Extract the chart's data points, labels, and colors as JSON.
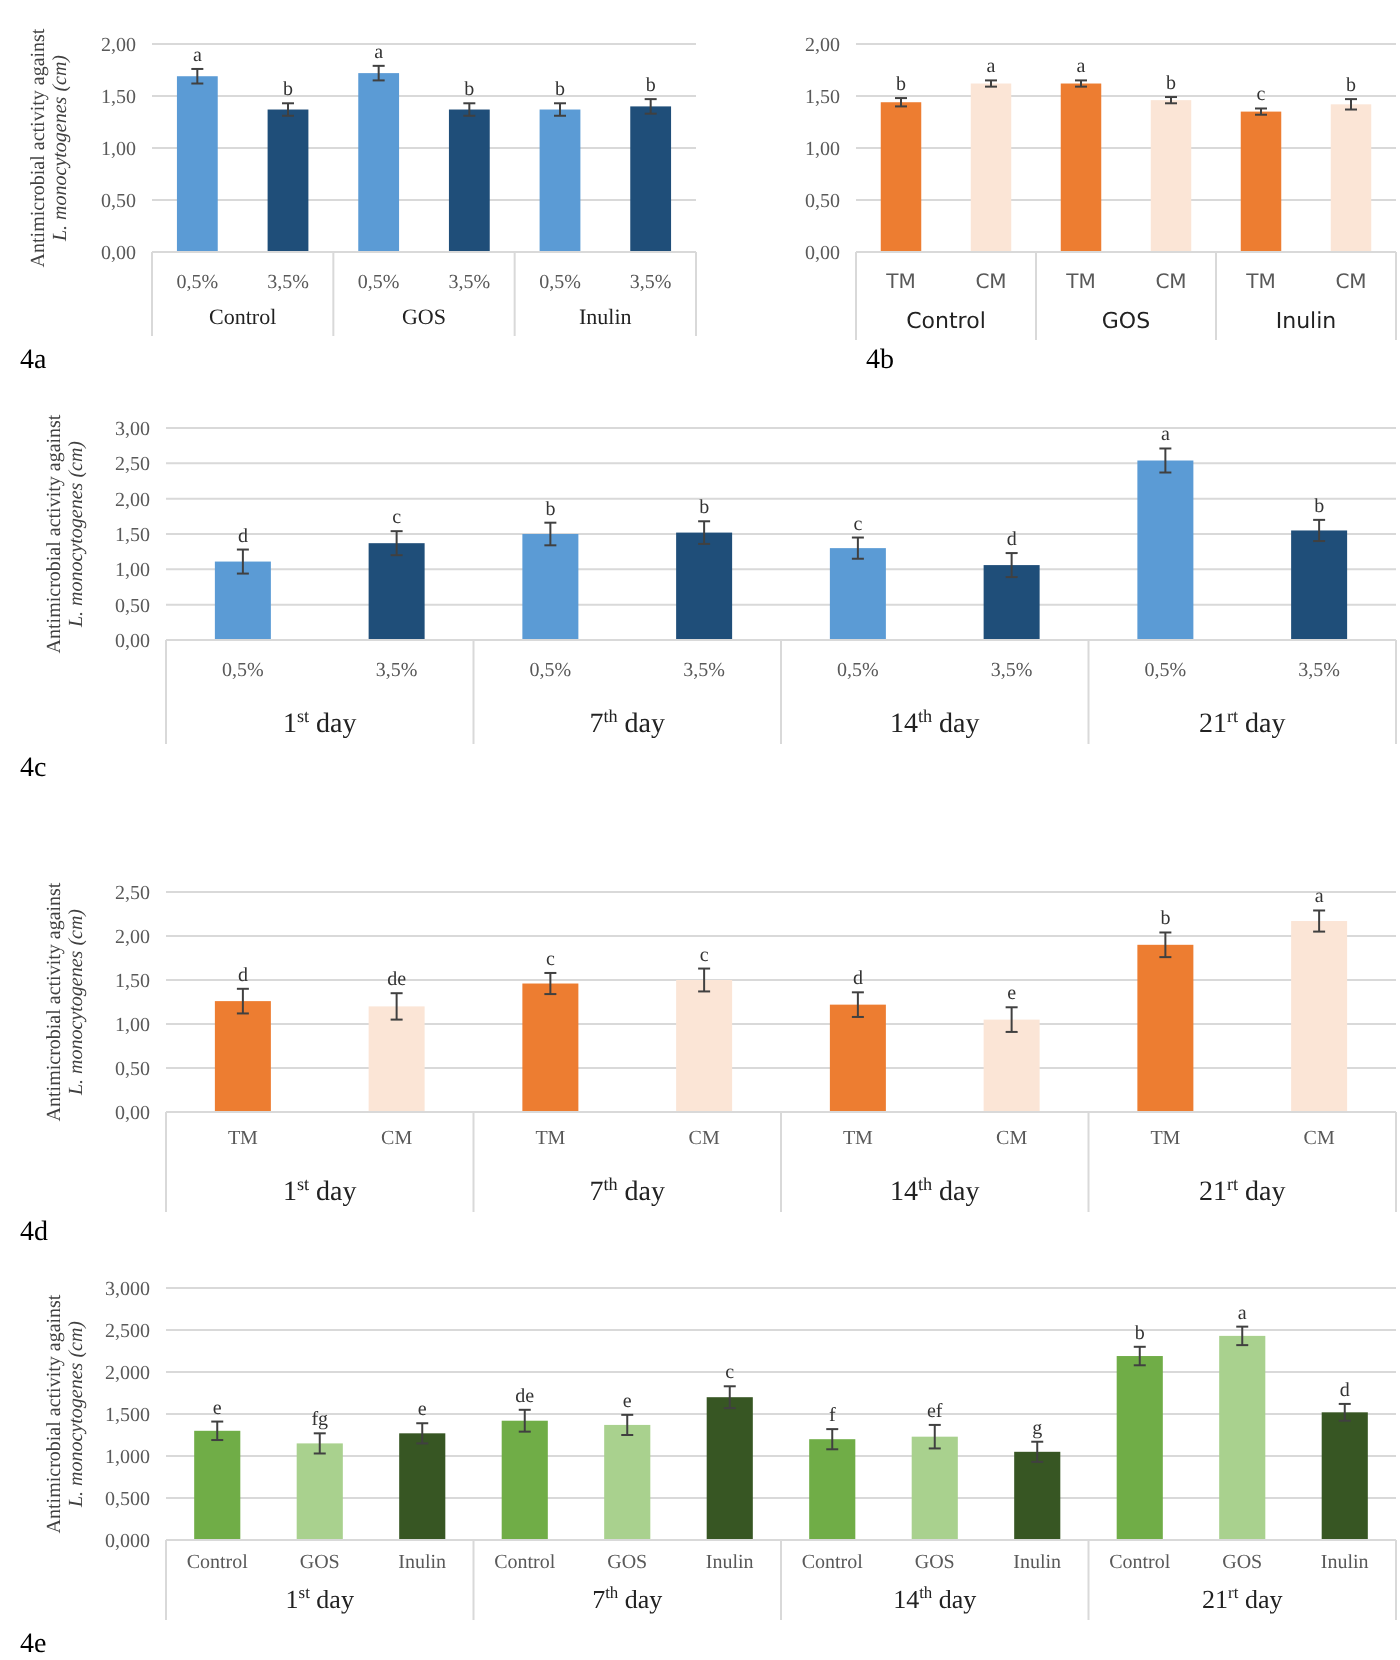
{
  "chart_data": [
    {
      "type": "bar",
      "title": "4a",
      "ylabel": "Antimicrobial activity against\nL. monocytogenes (cm)",
      "categories": [
        "0,5%",
        "3,5%",
        "0,5%",
        "3,5%",
        "0,5%",
        "3,5%"
      ],
      "annotations": [
        "Control",
        "GOS",
        "Inulin"
      ],
      "series": [
        {
          "values": [
            1.69,
            1.37,
            1.72,
            1.37,
            1.37,
            1.4
          ],
          "colors": [
            "#5b9bd5",
            "#1f4e79",
            "#5b9bd5",
            "#1f4e79",
            "#5b9bd5",
            "#1f4e79"
          ],
          "errors": [
            0.07,
            0.06,
            0.07,
            0.06,
            0.06,
            0.07
          ],
          "value_labels": [
            "a",
            "b",
            "a",
            "b",
            "b",
            "b"
          ]
        }
      ],
      "ylim": [
        0,
        2
      ],
      "yticks": [
        {
          "value": 0,
          "label": "0,00"
        },
        {
          "value": 0.5,
          "label": "0,50"
        },
        {
          "value": 1,
          "label": "1,00"
        },
        {
          "value": 1.5,
          "label": "1,50"
        },
        {
          "value": 2,
          "label": "2,00"
        }
      ],
      "grid": "y"
    },
    {
      "type": "bar",
      "title": "4b",
      "categories": [
        "TM",
        "CM",
        "TM",
        "CM",
        "TM",
        "CM"
      ],
      "annotations": [
        "Control",
        "GOS",
        "Inulin"
      ],
      "series": [
        {
          "values": [
            1.44,
            1.62,
            1.62,
            1.46,
            1.35,
            1.42
          ],
          "colors": [
            "#ed7d31",
            "#fbe5d6",
            "#ed7d31",
            "#fbe5d6",
            "#ed7d31",
            "#fbe5d6"
          ],
          "errors": [
            0.04,
            0.03,
            0.03,
            0.03,
            0.03,
            0.05
          ],
          "value_labels": [
            "b",
            "a",
            "a",
            "b",
            "c",
            "b"
          ]
        }
      ],
      "ylim": [
        0,
        2
      ],
      "yticks": [
        {
          "value": 0,
          "label": "0,00"
        },
        {
          "value": 0.5,
          "label": "0,50"
        },
        {
          "value": 1,
          "label": "1,00"
        },
        {
          "value": 1.5,
          "label": "1,50"
        },
        {
          "value": 2,
          "label": "2,00"
        }
      ],
      "grid": "y"
    },
    {
      "type": "bar",
      "title": "4c",
      "ylabel": "Antimicrobial activity against\nL. monocytogenes (cm)",
      "categories": [
        "0,5%",
        "3,5%",
        "0,5%",
        "3,5%",
        "0,5%",
        "3,5%",
        "0,5%",
        "3,5%"
      ],
      "annotations": [
        "1$^{st}$ day",
        "7$^{th}$ day",
        "14$^{th}$ day",
        "21$^{rt}$ day"
      ],
      "series": [
        {
          "values": [
            1.11,
            1.37,
            1.5,
            1.52,
            1.3,
            1.06,
            2.54,
            1.55
          ],
          "colors": [
            "#5b9bd5",
            "#1f4e79",
            "#5b9bd5",
            "#1f4e79",
            "#5b9bd5",
            "#1f4e79",
            "#5b9bd5",
            "#1f4e79"
          ],
          "errors": [
            0.17,
            0.17,
            0.16,
            0.16,
            0.15,
            0.17,
            0.17,
            0.15
          ],
          "value_labels": [
            "d",
            "c",
            "b",
            "b",
            "c",
            "d",
            "a",
            "b"
          ]
        }
      ],
      "ylim": [
        0,
        3
      ],
      "yticks": [
        {
          "value": 0,
          "label": "0,00"
        },
        {
          "value": 0.5,
          "label": "0,50"
        },
        {
          "value": 1,
          "label": "1,00"
        },
        {
          "value": 1.5,
          "label": "1,50"
        },
        {
          "value": 2,
          "label": "2,00"
        },
        {
          "value": 2.5,
          "label": "2,50"
        },
        {
          "value": 3,
          "label": "3,00"
        }
      ],
      "grid": "y"
    },
    {
      "type": "bar",
      "title": "4d",
      "ylabel": "Antimicrobial activity against\nL. monocytogenes (cm)",
      "categories": [
        "TM",
        "CM",
        "TM",
        "CM",
        "TM",
        "CM",
        "TM",
        "CM"
      ],
      "annotations": [
        "1$^{st}$ day",
        "7$^{th}$ day",
        "14$^{th}$ day",
        "21$^{rt}$ day"
      ],
      "series": [
        {
          "values": [
            1.26,
            1.2,
            1.46,
            1.5,
            1.22,
            1.05,
            1.9,
            2.17
          ],
          "colors": [
            "#ed7d31",
            "#fbe5d6",
            "#ed7d31",
            "#fbe5d6",
            "#ed7d31",
            "#fbe5d6",
            "#ed7d31",
            "#fbe5d6"
          ],
          "errors": [
            0.14,
            0.15,
            0.12,
            0.13,
            0.14,
            0.14,
            0.14,
            0.12
          ],
          "value_labels": [
            "d",
            "de",
            "c",
            "c",
            "d",
            "e",
            "b",
            "a"
          ]
        }
      ],
      "ylim": [
        0,
        2.5
      ],
      "yticks": [
        {
          "value": 0,
          "label": "0,00"
        },
        {
          "value": 0.5,
          "label": "0,50"
        },
        {
          "value": 1,
          "label": "1,00"
        },
        {
          "value": 1.5,
          "label": "1,50"
        },
        {
          "value": 2,
          "label": "2,00"
        },
        {
          "value": 2.5,
          "label": "2,50"
        }
      ],
      "grid": "y"
    },
    {
      "type": "bar",
      "title": "4e",
      "ylabel": "Antimicrobial activity against\nL. monocytogenes (cm)",
      "categories": [
        "Control",
        "GOS",
        "Inulin",
        "Control",
        "GOS",
        "Inulin",
        "Control",
        "GOS",
        "Inulin",
        "Control",
        "GOS",
        "Inulin"
      ],
      "annotations": [
        "1$^{st}$ day",
        "7$^{th}$ day",
        "14$^{th}$ day",
        "21$^{rt}$ day"
      ],
      "series": [
        {
          "values": [
            1.3,
            1.15,
            1.27,
            1.42,
            1.37,
            1.7,
            1.2,
            1.23,
            1.05,
            2.19,
            2.43,
            1.52
          ],
          "colors": [
            "#70ad47",
            "#a9d18e",
            "#375623",
            "#70ad47",
            "#a9d18e",
            "#375623",
            "#70ad47",
            "#a9d18e",
            "#375623",
            "#70ad47",
            "#a9d18e",
            "#375623"
          ],
          "errors": [
            0.11,
            0.12,
            0.12,
            0.13,
            0.12,
            0.13,
            0.12,
            0.14,
            0.12,
            0.11,
            0.11,
            0.1
          ],
          "value_labels": [
            "e",
            "fg",
            "e",
            "de",
            "e",
            "c",
            "f",
            "ef",
            "g",
            "b",
            "a",
            "d"
          ]
        }
      ],
      "ylim": [
        0,
        3
      ],
      "yticks": [
        {
          "value": 0,
          "label": "0,000"
        },
        {
          "value": 0.5,
          "label": "0,500"
        },
        {
          "value": 1,
          "label": "1,000"
        },
        {
          "value": 1.5,
          "label": "1,500"
        },
        {
          "value": 2,
          "label": "2,000"
        },
        {
          "value": 2.5,
          "label": "2,500"
        },
        {
          "value": 3,
          "label": "3,000"
        }
      ],
      "grid": "y"
    }
  ]
}
